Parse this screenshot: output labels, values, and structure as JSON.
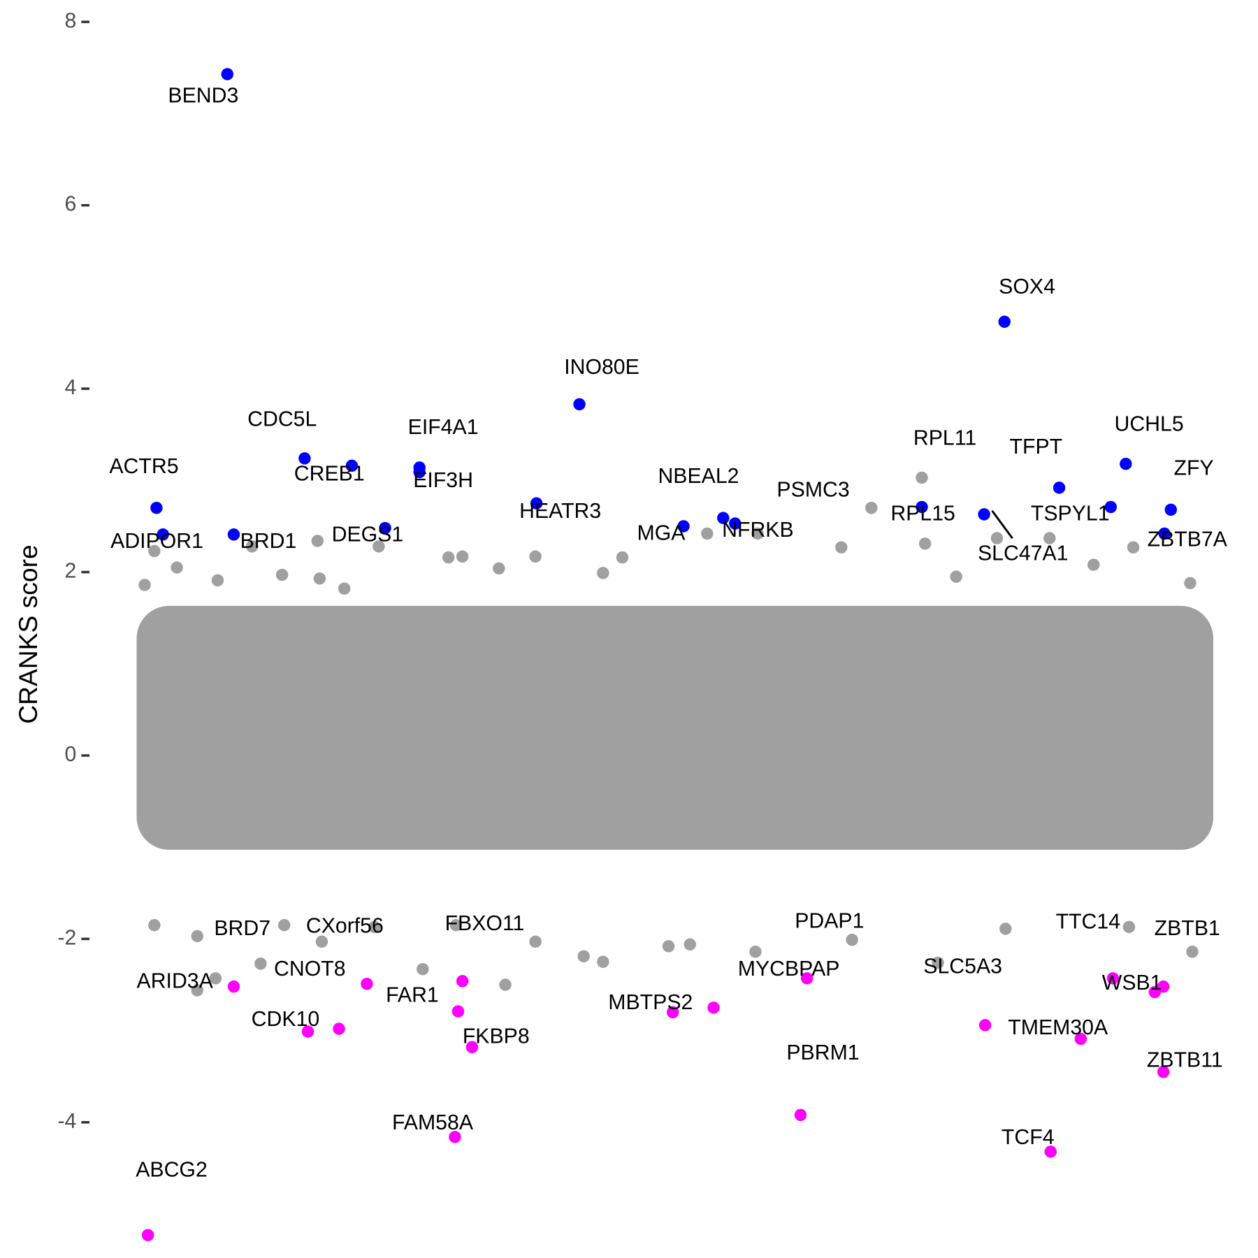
{
  "chart_data": {
    "type": "scatter",
    "y_label": "CRANKS score",
    "xlim": [
      0,
      1
    ],
    "ylim": [
      -5.4,
      8.15
    ],
    "yticks": [
      -4,
      -2,
      0,
      2,
      4,
      6,
      8
    ],
    "series": [
      {
        "color": "#a0a0a0",
        "x": [
          0.683,
          0.73,
          0.055,
          0.006,
          0.015,
          0.036,
          0.074,
          0.106,
          0.134,
          0.167,
          0.169,
          0.192,
          0.224,
          0.289,
          0.302,
          0.336,
          0.37,
          0.433,
          0.451,
          0.53,
          0.577,
          0.655,
          0.733,
          0.762,
          0.8,
          0.849,
          0.89,
          0.927,
          0.98,
          0.015,
          0.055,
          0.072,
          0.114,
          0.136,
          0.171,
          0.22,
          0.265,
          0.296,
          0.342,
          0.37,
          0.415,
          0.433,
          0.494,
          0.514,
          0.575,
          0.665,
          0.745,
          0.808,
          0.923,
          0.982
        ],
        "values": [
          2.7,
          3.03,
          -2.56,
          1.86,
          2.23,
          2.05,
          1.91,
          2.28,
          1.97,
          2.34,
          1.93,
          1.82,
          2.28,
          2.16,
          2.17,
          2.04,
          2.17,
          1.99,
          2.16,
          2.42,
          2.42,
          2.27,
          2.31,
          1.95,
          2.37,
          2.37,
          2.08,
          2.27,
          1.88,
          -1.85,
          -1.97,
          -2.43,
          -2.27,
          -1.85,
          -2.03,
          -1.87,
          -2.33,
          -1.85,
          -2.5,
          -2.03,
          -2.19,
          -2.25,
          -2.08,
          -2.06,
          -2.14,
          -2.01,
          -2.26,
          -1.89,
          -1.87,
          -2.14
        ],
        "labels": [
          "PSMC3",
          "RPL11",
          "ARID3A",
          null,
          null,
          null,
          null,
          null,
          null,
          null,
          null,
          null,
          null,
          null,
          null,
          null,
          null,
          null,
          null,
          null,
          null,
          null,
          null,
          null,
          null,
          null,
          null,
          null,
          null,
          null,
          null,
          null,
          null,
          null,
          null,
          null,
          null,
          null,
          null,
          null,
          null,
          null,
          null,
          null,
          null,
          null,
          null,
          null,
          null,
          null
        ]
      },
      {
        "color": "#0000ff",
        "x": [
          0.083,
          0.807,
          0.411,
          0.155,
          0.199,
          0.262,
          0.262,
          0.017,
          0.023,
          0.089,
          0.23,
          0.371,
          0.545,
          0.556,
          0.508,
          0.73,
          0.788,
          0.858,
          0.906,
          0.92,
          0.962,
          0.956
        ],
        "values": [
          7.43,
          4.73,
          3.83,
          3.24,
          3.16,
          3.14,
          3.09,
          2.7,
          2.41,
          2.41,
          2.48,
          2.75,
          2.59,
          2.53,
          2.5,
          2.71,
          2.63,
          2.92,
          2.71,
          3.18,
          2.68,
          2.42
        ],
        "labels": [
          "BEND3",
          "SOX4",
          "INO80E",
          "CDC5L",
          "CREB1",
          "EIF4A1",
          "EIF3H",
          "ACTR5",
          "ADIPOR1",
          "BRD1",
          "DEGS1",
          "HEATR3",
          "NBEAL2",
          "NFRKB",
          "MGA",
          "RPL15",
          "SLC47A1",
          "TFPT",
          "TSPYL1",
          "UCHL5",
          "ZFY",
          "ZBTB7A"
        ]
      },
      {
        "color": "#ff00ff",
        "x": [
          0.009,
          0.089,
          0.158,
          0.187,
          0.213,
          0.302,
          0.298,
          0.311,
          0.295,
          0.498,
          0.536,
          0.623,
          0.617,
          0.789,
          0.878,
          0.85,
          0.908,
          0.947,
          0.955,
          0.955
        ],
        "values": [
          -5.23,
          -2.52,
          -3.01,
          -2.98,
          -2.49,
          -2.46,
          -2.79,
          -3.18,
          -4.16,
          -2.8,
          -2.75,
          -2.43,
          -3.92,
          -2.94,
          -3.09,
          -4.32,
          -2.43,
          -2.58,
          -2.52,
          -3.45
        ],
        "labels": [
          "ABCG2",
          "BRD7",
          "CDK10",
          "CNOT8",
          "CXorf56",
          "FBXO11",
          "FAR1",
          "FKBP8",
          "FAM58A",
          "MBTPS2",
          "MYCBPAP",
          "PDAP1",
          "PBRM1",
          "SLC5A3",
          "TMEM30A",
          "TCF4",
          "TTC14",
          "WSB1",
          "ZBTB1",
          "ZBTB11"
        ]
      }
    ]
  }
}
